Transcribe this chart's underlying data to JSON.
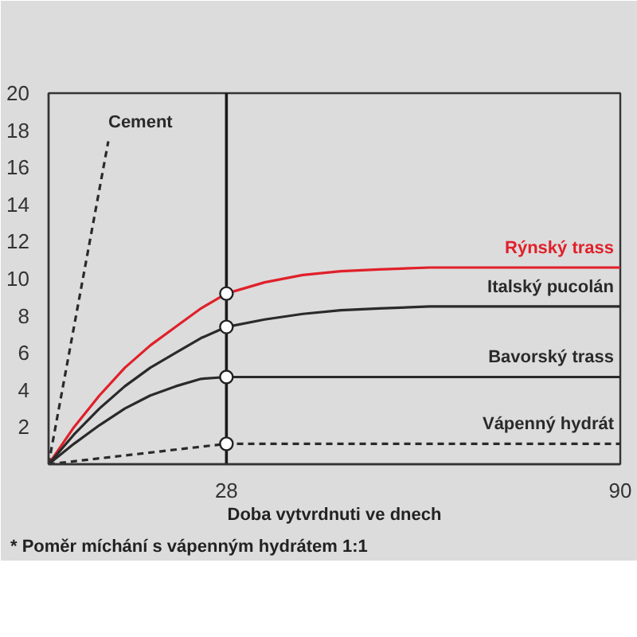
{
  "chart_data": {
    "type": "line",
    "xlabel": "Doba vytvrdnuti ve dnech",
    "annotations": [
      "* Poměr míchání s vápenným hydrátem 1:1"
    ],
    "xlim": [
      0,
      90
    ],
    "xticks": [
      28,
      90
    ],
    "ylim": [
      0,
      20
    ],
    "yticks": [
      2,
      4,
      6,
      8,
      10,
      12,
      14,
      16,
      18,
      20
    ],
    "grid": false,
    "legend": false,
    "marker": "none",
    "ref_lines": [
      {
        "axis": "x",
        "value": 28,
        "color": "#1a1a1a"
      }
    ],
    "series": [
      {
        "name": "Cement",
        "color": "#2a2a2a",
        "line_style": "dashed",
        "x": [
          0,
          9.4
        ],
        "values": [
          0,
          17.4
        ]
      },
      {
        "name": "Rýnský trass",
        "color": "#e0202a",
        "line_style": "solid",
        "x": [
          0,
          4,
          8,
          12,
          16,
          20,
          24,
          28,
          34,
          40,
          46,
          52,
          60,
          70,
          80,
          90
        ],
        "values": [
          0,
          2.0,
          3.7,
          5.2,
          6.4,
          7.4,
          8.4,
          9.2,
          9.8,
          10.2,
          10.4,
          10.5,
          10.6,
          10.6,
          10.6,
          10.6
        ]
      },
      {
        "name": "Italský pucolán",
        "color": "#2a2a2a",
        "line_style": "solid",
        "x": [
          0,
          4,
          8,
          12,
          16,
          20,
          24,
          28,
          34,
          40,
          46,
          52,
          60,
          70,
          80,
          90
        ],
        "values": [
          0,
          1.6,
          3.0,
          4.2,
          5.2,
          6.0,
          6.8,
          7.4,
          7.8,
          8.1,
          8.3,
          8.4,
          8.5,
          8.5,
          8.5,
          8.5
        ]
      },
      {
        "name": "Bavorský trass",
        "color": "#2a2a2a",
        "line_style": "solid",
        "x": [
          0,
          4,
          8,
          12,
          16,
          20,
          24,
          28,
          90
        ],
        "values": [
          0,
          1.1,
          2.1,
          3.0,
          3.7,
          4.2,
          4.6,
          4.7,
          4.7
        ]
      },
      {
        "name": "Vápenný hydrát",
        "color": "#2a2a2a",
        "line_style": "dashed",
        "x": [
          0,
          28,
          90
        ],
        "values": [
          0,
          1.1,
          1.1
        ]
      },
      {
        "type": "scatter",
        "color": "#ffffff",
        "marker": "circle",
        "x": [
          28,
          28,
          28,
          28
        ],
        "values": [
          9.2,
          7.4,
          4.7,
          1.1
        ]
      }
    ]
  }
}
